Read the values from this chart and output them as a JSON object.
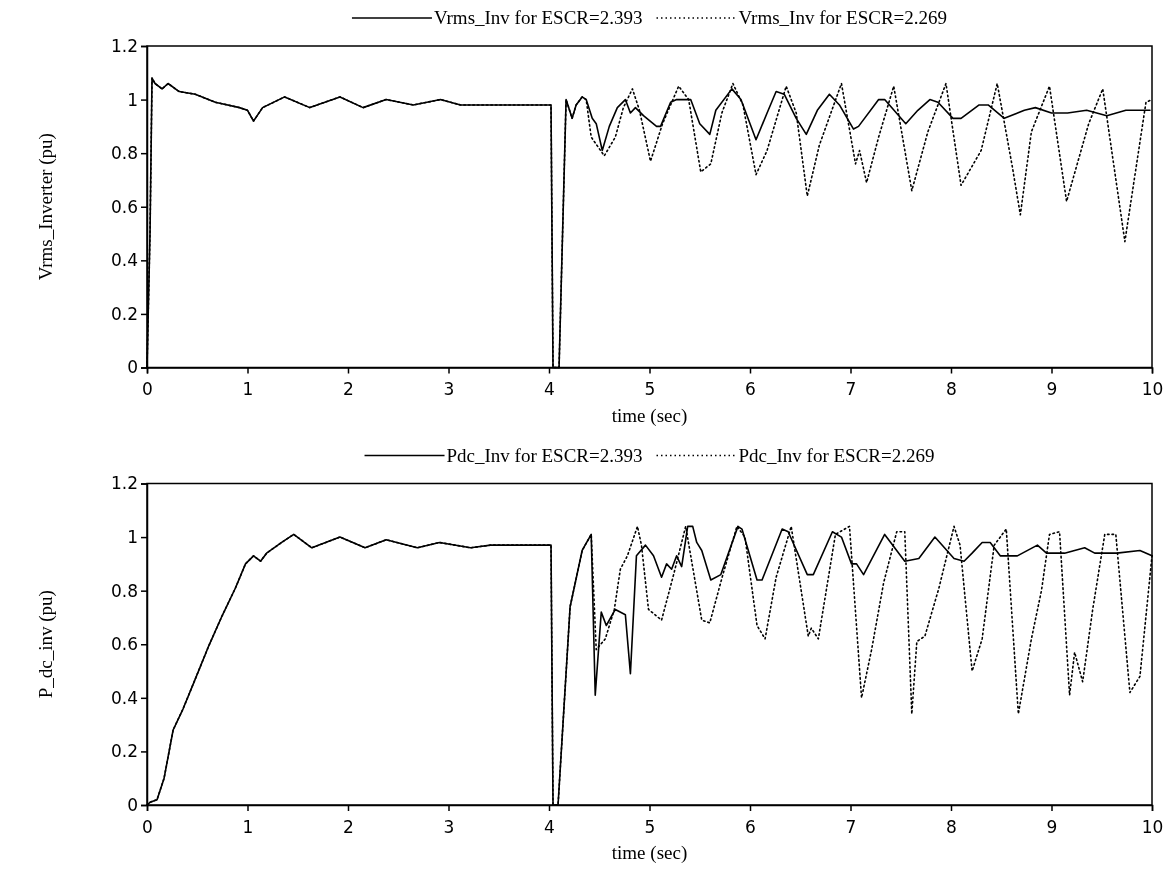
{
  "chart_data": [
    {
      "type": "line",
      "xlabel": "time (sec)",
      "ylabel": "Vrms_Inverter (pu)",
      "xlim": [
        0,
        10
      ],
      "ylim": [
        0,
        1.2
      ],
      "xticks": [
        0,
        1,
        2,
        3,
        4,
        5,
        6,
        7,
        8,
        9,
        10
      ],
      "yticks": [
        0,
        0.2,
        0.4,
        0.6,
        0.8,
        1,
        1.2
      ],
      "grid": false,
      "legend": "top",
      "marker": "none",
      "series": [
        {
          "name": "Vrms_Inv for ESCR=2.393",
          "color": "#000000",
          "line_style": "solid",
          "x": [
            0,
            0.03,
            0.05,
            0.08,
            0.15,
            0.21,
            0.32,
            0.48,
            0.68,
            0.92,
            1.0,
            1.06,
            1.15,
            1.37,
            1.62,
            1.92,
            2.15,
            2.38,
            2.65,
            2.92,
            3.12,
            3.48,
            4.02,
            4.04,
            4.1,
            4.17,
            4.23,
            4.27,
            4.33,
            4.37,
            4.43,
            4.47,
            4.53,
            4.6,
            4.68,
            4.76,
            4.81,
            4.86,
            4.94,
            5.07,
            5.11,
            5.21,
            5.27,
            5.41,
            5.5,
            5.6,
            5.66,
            5.82,
            5.91,
            6.06,
            6.17,
            6.26,
            6.34,
            6.46,
            6.56,
            6.67,
            6.79,
            6.89,
            7.03,
            7.08,
            7.28,
            7.34,
            7.55,
            7.67,
            7.79,
            7.87,
            8.02,
            8.1,
            8.28,
            8.37,
            8.53,
            8.73,
            8.84,
            9.0,
            9.16,
            9.35,
            9.55,
            9.74,
            9.98
          ],
          "values": [
            0,
            0.5,
            1.08,
            1.06,
            1.04,
            1.06,
            1.03,
            1.02,
            0.99,
            0.97,
            0.96,
            0.92,
            0.97,
            1.01,
            0.97,
            1.01,
            0.97,
            1.0,
            0.98,
            1.0,
            0.98,
            0.98,
            0.98,
            0,
            0,
            1.0,
            0.93,
            0.98,
            1.01,
            1.0,
            0.93,
            0.91,
            0.81,
            0.9,
            0.97,
            1.0,
            0.95,
            0.97,
            0.94,
            0.9,
            0.9,
            0.99,
            1.0,
            1.0,
            0.91,
            0.87,
            0.96,
            1.04,
            1.0,
            0.85,
            0.95,
            1.03,
            1.02,
            0.93,
            0.87,
            0.96,
            1.02,
            0.98,
            0.89,
            0.9,
            1.0,
            1.0,
            0.91,
            0.96,
            1.0,
            0.99,
            0.93,
            0.93,
            0.98,
            0.98,
            0.93,
            0.96,
            0.97,
            0.95,
            0.95,
            0.96,
            0.94,
            0.96,
            0.96
          ]
        },
        {
          "name": "Vrms_Inv for ESCR=2.269",
          "color": "#000000",
          "line_style": "dotted",
          "x": [
            0,
            0.03,
            0.05,
            0.08,
            0.15,
            0.21,
            0.32,
            0.48,
            0.68,
            0.92,
            1.0,
            1.06,
            1.15,
            1.37,
            1.62,
            1.92,
            2.15,
            2.38,
            2.65,
            2.92,
            3.12,
            3.48,
            4.02,
            4.04,
            4.1,
            4.17,
            4.23,
            4.27,
            4.33,
            4.37,
            4.42,
            4.55,
            4.66,
            4.74,
            4.83,
            4.9,
            5.01,
            5.13,
            5.29,
            5.39,
            5.51,
            5.61,
            5.72,
            5.83,
            5.93,
            6.06,
            6.17,
            6.36,
            6.46,
            6.57,
            6.69,
            6.91,
            7.05,
            7.09,
            7.16,
            7.28,
            7.43,
            7.61,
            7.77,
            7.95,
            8.1,
            8.3,
            8.46,
            8.61,
            8.69,
            8.8,
            8.98,
            9.15,
            9.37,
            9.51,
            9.73,
            9.94,
            10.0
          ],
          "values": [
            0,
            0.5,
            1.08,
            1.06,
            1.04,
            1.06,
            1.03,
            1.02,
            0.99,
            0.97,
            0.96,
            0.92,
            0.97,
            1.01,
            0.97,
            1.01,
            0.97,
            1.0,
            0.98,
            1.0,
            0.98,
            0.98,
            0.98,
            0,
            0,
            1.0,
            0.93,
            0.98,
            1.01,
            1.0,
            0.86,
            0.79,
            0.86,
            0.97,
            1.04,
            0.96,
            0.77,
            0.91,
            1.05,
            1.0,
            0.73,
            0.76,
            0.95,
            1.06,
            0.98,
            0.72,
            0.81,
            1.05,
            0.95,
            0.64,
            0.83,
            1.06,
            0.76,
            0.81,
            0.69,
            0.86,
            1.05,
            0.66,
            0.88,
            1.06,
            0.68,
            0.81,
            1.06,
            0.75,
            0.57,
            0.88,
            1.05,
            0.62,
            0.91,
            1.04,
            0.47,
            0.99,
            1.0
          ]
        }
      ]
    },
    {
      "type": "line",
      "xlabel": "time (sec)",
      "ylabel": "P_dc_inv (pu)",
      "xlim": [
        0,
        10
      ],
      "ylim": [
        0,
        1.2
      ],
      "xticks": [
        0,
        1,
        2,
        3,
        4,
        5,
        6,
        7,
        8,
        9,
        10
      ],
      "yticks": [
        0,
        0.2,
        0.4,
        0.6,
        0.8,
        1,
        1.2
      ],
      "grid": false,
      "legend": "top",
      "marker": "none",
      "series": [
        {
          "name": "Pdc_Inv for ESCR=2.393",
          "color": "#000000",
          "line_style": "solid",
          "x": [
            0,
            0.03,
            0.1,
            0.17,
            0.26,
            0.36,
            0.48,
            0.61,
            0.74,
            0.88,
            0.98,
            1.06,
            1.13,
            1.19,
            1.34,
            1.46,
            1.64,
            1.92,
            2.17,
            2.38,
            2.69,
            2.91,
            3.22,
            3.42,
            4.02,
            4.04,
            4.09,
            4.21,
            4.33,
            4.42,
            4.46,
            4.52,
            4.57,
            4.66,
            4.76,
            4.81,
            4.87,
            4.96,
            5.04,
            5.12,
            5.17,
            5.22,
            5.27,
            5.32,
            5.38,
            5.43,
            5.47,
            5.52,
            5.61,
            5.71,
            5.88,
            5.92,
            6.07,
            6.12,
            6.32,
            6.38,
            6.57,
            6.63,
            6.82,
            6.91,
            7.01,
            7.06,
            7.13,
            7.34,
            7.54,
            7.68,
            7.84,
            8.03,
            8.13,
            8.21,
            8.31,
            8.39,
            8.49,
            8.66,
            8.86,
            8.95,
            9.13,
            9.33,
            9.43,
            9.65,
            9.88,
            10.0
          ],
          "values": [
            0,
            0.01,
            0.02,
            0.1,
            0.28,
            0.36,
            0.47,
            0.59,
            0.7,
            0.81,
            0.9,
            0.93,
            0.91,
            0.94,
            0.98,
            1.01,
            0.96,
            1.0,
            0.96,
            0.99,
            0.96,
            0.98,
            0.96,
            0.97,
            0.97,
            0,
            0,
            0.74,
            0.95,
            1.01,
            0.41,
            0.72,
            0.67,
            0.73,
            0.71,
            0.49,
            0.93,
            0.97,
            0.93,
            0.85,
            0.9,
            0.88,
            0.93,
            0.89,
            1.04,
            1.04,
            0.98,
            0.95,
            0.84,
            0.86,
            1.04,
            1.03,
            0.84,
            0.84,
            1.03,
            1.02,
            0.86,
            0.86,
            1.02,
            1.0,
            0.9,
            0.9,
            0.86,
            1.01,
            0.91,
            0.92,
            1.0,
            0.92,
            0.91,
            0.94,
            0.98,
            0.98,
            0.93,
            0.93,
            0.97,
            0.94,
            0.94,
            0.96,
            0.94,
            0.94,
            0.95,
            0.93
          ]
        },
        {
          "name": "Pdc_Inv for ESCR=2.269",
          "color": "#000000",
          "line_style": "dotted",
          "x": [
            0,
            0.03,
            0.1,
            0.17,
            0.26,
            0.36,
            0.48,
            0.61,
            0.74,
            0.88,
            0.98,
            1.06,
            1.13,
            1.19,
            1.34,
            1.46,
            1.64,
            1.92,
            2.17,
            2.38,
            2.69,
            2.91,
            3.22,
            3.42,
            4.02,
            4.04,
            4.09,
            4.21,
            4.33,
            4.42,
            4.47,
            4.56,
            4.65,
            4.71,
            4.78,
            4.88,
            4.92,
            4.99,
            5.12,
            5.24,
            5.36,
            5.52,
            5.6,
            5.73,
            5.87,
            5.95,
            6.07,
            6.15,
            6.26,
            6.41,
            6.58,
            6.61,
            6.68,
            6.85,
            6.99,
            7.11,
            7.21,
            7.33,
            7.46,
            7.54,
            7.61,
            7.66,
            7.74,
            7.88,
            8.03,
            8.09,
            8.21,
            8.31,
            8.43,
            8.55,
            8.67,
            8.8,
            8.9,
            8.98,
            9.08,
            9.18,
            9.23,
            9.31,
            9.41,
            9.53,
            9.64,
            9.78,
            9.88,
            10.0
          ],
          "values": [
            0,
            0.01,
            0.02,
            0.1,
            0.28,
            0.36,
            0.47,
            0.59,
            0.7,
            0.81,
            0.9,
            0.93,
            0.91,
            0.94,
            0.98,
            1.01,
            0.96,
            1.0,
            0.96,
            0.99,
            0.96,
            0.98,
            0.96,
            0.97,
            0.97,
            0,
            0,
            0.74,
            0.95,
            1.01,
            0.58,
            0.62,
            0.73,
            0.88,
            0.93,
            1.04,
            0.97,
            0.73,
            0.69,
            0.86,
            1.04,
            0.69,
            0.68,
            0.86,
            1.04,
            1.0,
            0.67,
            0.62,
            0.85,
            1.04,
            0.63,
            0.66,
            0.62,
            1.01,
            1.04,
            0.4,
            0.58,
            0.83,
            1.02,
            1.02,
            0.34,
            0.61,
            0.63,
            0.81,
            1.04,
            0.97,
            0.5,
            0.62,
            0.97,
            1.03,
            0.34,
            0.62,
            0.8,
            1.01,
            1.02,
            0.41,
            0.57,
            0.46,
            0.73,
            1.01,
            1.01,
            0.42,
            0.48,
            0.93
          ]
        }
      ]
    }
  ]
}
